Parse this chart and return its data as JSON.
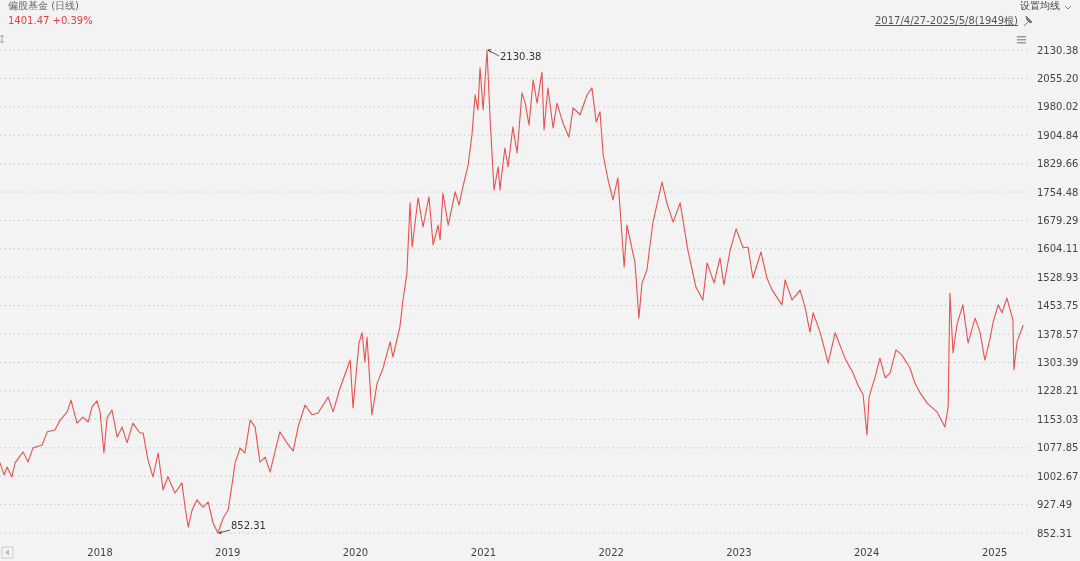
{
  "chart_data": {
    "type": "line",
    "title": "偏股基金 (日线)",
    "subtitle": "1401.47 +0.39%",
    "annotations": [
      "设置均线",
      "2017/4/27-2025/5/8(1949根)",
      {
        "text": "2130.38",
        "x": "2021-01-11",
        "y": 2130.38
      },
      {
        "text": "852.31",
        "x": "2018-12-04",
        "y": 852.31
      }
    ],
    "x": [
      "2017-03-21",
      "2017-04-02",
      "2017-04-10",
      "2017-04-24",
      "2017-05-03",
      "2017-05-26",
      "2017-06-09",
      "2017-06-23",
      "2017-07-19",
      "2017-08-03",
      "2017-08-25",
      "2017-09-09",
      "2017-09-29",
      "2017-10-10",
      "2017-10-27",
      "2017-11-13",
      "2017-11-28",
      "2017-12-09",
      "2017-12-23",
      "2018-01-01",
      "2018-01-12",
      "2018-01-21",
      "2018-02-04",
      "2018-02-19",
      "2018-03-05",
      "2018-03-19",
      "2018-04-05",
      "2018-04-25",
      "2018-05-04",
      "2018-05-18",
      "2018-06-01",
      "2018-06-16",
      "2018-06-30",
      "2018-07-14",
      "2018-08-03",
      "2018-08-23",
      "2018-09-01",
      "2018-09-10",
      "2018-09-21",
      "2018-10-05",
      "2018-10-22",
      "2018-11-06",
      "2018-11-20",
      "2018-12-04",
      "2018-12-19",
      "2019-01-02",
      "2019-01-13",
      "2019-01-22",
      "2019-02-05",
      "2019-02-19",
      "2019-03-06",
      "2019-03-20",
      "2019-04-03",
      "2019-04-18",
      "2019-05-02",
      "2019-05-22",
      "2019-05-30",
      "2019-06-19",
      "2019-07-07",
      "2019-07-21",
      "2019-08-10",
      "2019-08-30",
      "2019-09-16",
      "2019-10-15",
      "2019-10-29",
      "2019-11-18",
      "2019-12-17",
      "2019-12-25",
      "2020-01-11",
      "2020-01-20",
      "2020-01-28",
      "2020-02-03",
      "2020-02-17",
      "2020-03-03",
      "2020-03-20",
      "2020-04-09",
      "2020-04-17",
      "2020-05-07",
      "2020-05-16",
      "2020-05-27",
      "2020-06-05",
      "2020-06-11",
      "2020-06-28",
      "2020-07-12",
      "2020-07-29",
      "2020-08-10",
      "2020-08-24",
      "2020-08-30",
      "2020-09-07",
      "2020-09-22",
      "2020-10-12",
      "2020-10-23",
      "2020-11-03",
      "2020-11-18",
      "2020-11-29",
      "2020-12-08",
      "2020-12-16",
      "2020-12-22",
      "2020-12-31",
      "2021-01-11",
      "2021-01-20",
      "2021-01-31",
      "2021-02-12",
      "2021-02-17",
      "2021-03-03",
      "2021-03-12",
      "2021-03-26",
      "2021-04-07",
      "2021-04-21",
      "2021-04-30",
      "2021-05-11",
      "2021-05-23",
      "2021-06-03",
      "2021-06-17",
      "2021-06-23",
      "2021-07-04",
      "2021-07-19",
      "2021-07-30",
      "2021-08-16",
      "2021-09-02",
      "2021-09-14",
      "2021-10-04",
      "2021-10-24",
      "2021-11-07",
      "2021-11-19",
      "2021-11-30",
      "2021-12-09",
      "2021-12-23",
      "2022-01-06",
      "2022-01-20",
      "2022-02-01",
      "2022-02-07",
      "2022-02-15",
      "2022-03-01",
      "2022-03-10",
      "2022-03-21",
      "2022-03-30",
      "2022-04-13",
      "2022-04-30",
      "2022-05-26",
      "2022-06-09",
      "2022-06-27",
      "2022-07-17",
      "2022-08-08",
      "2022-08-31",
      "2022-09-20",
      "2022-10-02",
      "2022-10-22",
      "2022-11-08",
      "2022-11-19",
      "2022-12-07",
      "2022-12-24",
      "2023-01-13",
      "2023-01-27",
      "2023-02-10",
      "2023-03-05",
      "2023-03-22",
      "2023-04-06",
      "2023-05-04",
      "2023-05-13",
      "2023-06-02",
      "2023-06-25",
      "2023-07-09",
      "2023-07-23",
      "2023-08-01",
      "2023-08-21",
      "2023-09-13",
      "2023-10-03",
      "2023-10-31",
      "2023-11-23",
      "2023-12-07",
      "2023-12-22",
      "2024-01-02",
      "2024-01-08",
      "2024-01-25",
      "2024-02-08",
      "2024-02-23",
      "2024-03-08",
      "2024-03-25",
      "2024-04-11",
      "2024-05-04",
      "2024-05-18",
      "2024-06-02",
      "2024-06-22",
      "2024-07-20",
      "2024-08-12",
      "2024-08-21",
      "2024-08-26",
      "2024-09-04",
      "2024-09-15",
      "2024-10-02",
      "2024-10-17",
      "2024-11-06",
      "2024-11-20",
      "2024-12-04",
      "2024-12-19",
      "2024-12-27",
      "2025-01-11",
      "2025-01-22",
      "2025-02-05",
      "2025-02-22",
      "2025-02-25",
      "2025-03-06",
      "2025-03-23"
    ],
    "series": [
      {
        "color": "#e8524f",
        "values": [
          1038,
          1006,
          1027,
          1001,
          1038,
          1067,
          1040,
          1077,
          1085,
          1120,
          1125,
          1151,
          1173,
          1204,
          1143,
          1159,
          1146,
          1186,
          1202,
          1173,
          1064,
          1157,
          1178,
          1106,
          1133,
          1091,
          1143,
          1117,
          1117,
          1046,
          1001,
          1064,
          966,
          1001,
          958,
          985,
          921,
          868,
          913,
          940,
          921,
          934,
          879,
          852.31,
          892,
          913,
          979,
          1038,
          1077,
          1064,
          1151,
          1133,
          1040,
          1053,
          1014,
          1091,
          1120,
          1091,
          1069,
          1133,
          1191,
          1165,
          1170,
          1212,
          1173,
          1236,
          1310,
          1183,
          1355,
          1382,
          1305,
          1371,
          1165,
          1249,
          1289,
          1358,
          1318,
          1398,
          1469,
          1540,
          1726,
          1609,
          1739,
          1662,
          1742,
          1615,
          1667,
          1628,
          1752,
          1667,
          1755,
          1720,
          1768,
          1826,
          1906,
          2012,
          1972,
          2083,
          1972,
          2130.38,
          1945,
          1760,
          1821,
          1760,
          1871,
          1821,
          1927,
          1858,
          2017,
          1990,
          1932,
          2051,
          1990,
          2072,
          1919,
          2030,
          1924,
          1990,
          1937,
          1900,
          1977,
          1959,
          2012,
          2030,
          1940,
          1967,
          1853,
          1787,
          1734,
          1792,
          1636,
          1556,
          1667,
          1607,
          1567,
          1421,
          1514,
          1548,
          1673,
          1781,
          1726,
          1675,
          1726,
          1601,
          1503,
          1469,
          1567,
          1514,
          1580,
          1509,
          1601,
          1657,
          1607,
          1609,
          1527,
          1596,
          1527,
          1495,
          1456,
          1522,
          1469,
          1495,
          1450,
          1384,
          1435,
          1384,
          1302,
          1382,
          1315,
          1276,
          1244,
          1218,
          1112,
          1212,
          1265,
          1315,
          1263,
          1276,
          1337,
          1323,
          1289,
          1249,
          1223,
          1196,
          1173,
          1133,
          1186,
          1487,
          1329,
          1403,
          1456,
          1355,
          1421,
          1384,
          1310,
          1368,
          1408,
          1456,
          1435,
          1474,
          1416,
          1284,
          1358,
          1401.47
        ]
      }
    ],
    "xlim": [
      "2017-03-21",
      "2025-04-12"
    ],
    "xticks": [
      "2018",
      "2019",
      "2020",
      "2021",
      "2022",
      "2023",
      "2024",
      "2025"
    ],
    "ylim": [
      852.31,
      2130.38
    ],
    "yticks": [
      852.31,
      927.49,
      1002.67,
      1077.85,
      1153.03,
      1228.21,
      1303.39,
      1378.57,
      1453.75,
      1528.93,
      1604.11,
      1679.29,
      1754.48,
      1829.66,
      1904.84,
      1980.02,
      {
        "value": 2055.2,
        "label": "2055.20"
      },
      2130.38
    ],
    "grid": "y",
    "line_style": "solid",
    "marker": "none"
  }
}
